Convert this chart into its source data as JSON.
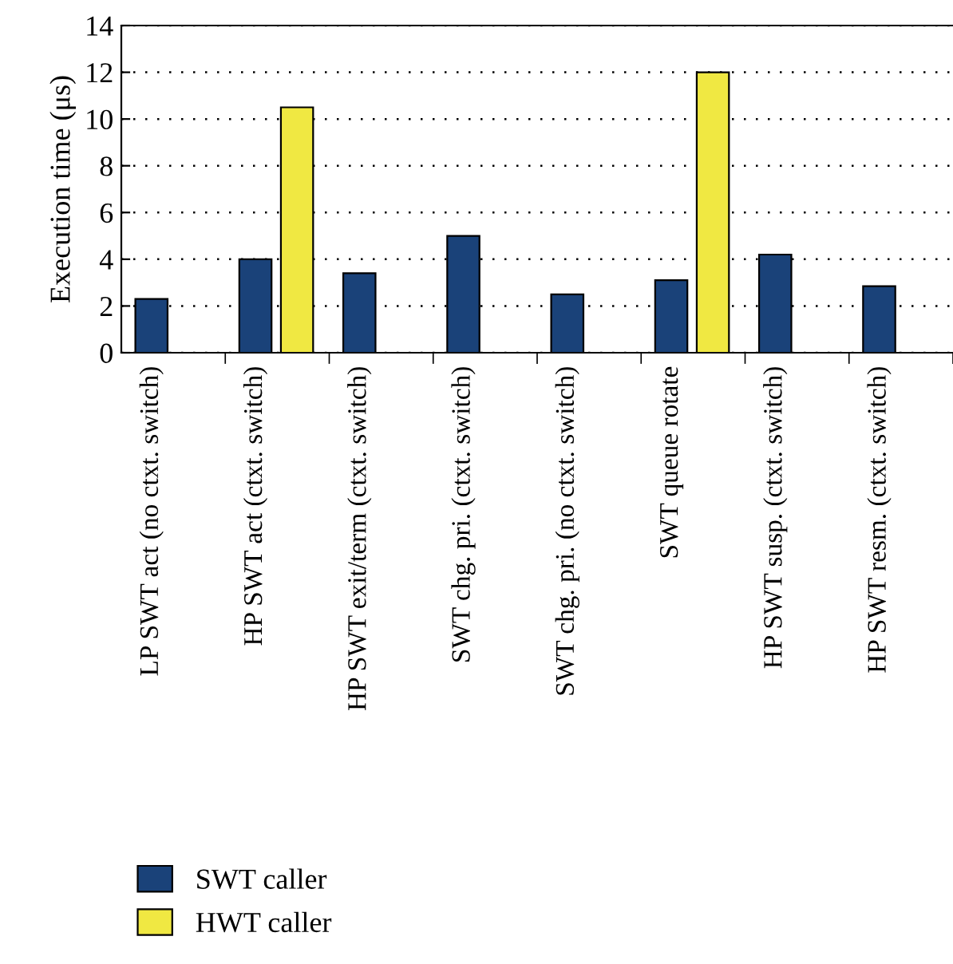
{
  "chart_data": {
    "type": "bar",
    "ylabel": "Execution time (μs)",
    "categories": [
      "LP SWT act (no ctxt. switch)",
      "HP SWT act (ctxt. switch)",
      "HP SWT exit/term (ctxt. switch)",
      "SWT chg. pri. (ctxt. switch)",
      "SWT chg. pri. (no ctxt. switch)",
      "SWT queue rotate",
      "HP SWT susp. (ctxt. switch)",
      "HP SWT resm. (ctxt. switch)"
    ],
    "series": [
      {
        "name": "SWT caller",
        "color": "#1a4279",
        "values": [
          2.3,
          4.0,
          3.4,
          5.0,
          2.5,
          3.1,
          4.2,
          2.85
        ]
      },
      {
        "name": "HWT caller",
        "color": "#f0e842",
        "values": [
          null,
          10.5,
          null,
          null,
          null,
          12.0,
          null,
          null
        ]
      }
    ],
    "ylim": [
      0,
      14
    ],
    "yticks": [
      0,
      2,
      4,
      6,
      8,
      10,
      12,
      14
    ],
    "grid": "y",
    "legend": "bottom left"
  }
}
